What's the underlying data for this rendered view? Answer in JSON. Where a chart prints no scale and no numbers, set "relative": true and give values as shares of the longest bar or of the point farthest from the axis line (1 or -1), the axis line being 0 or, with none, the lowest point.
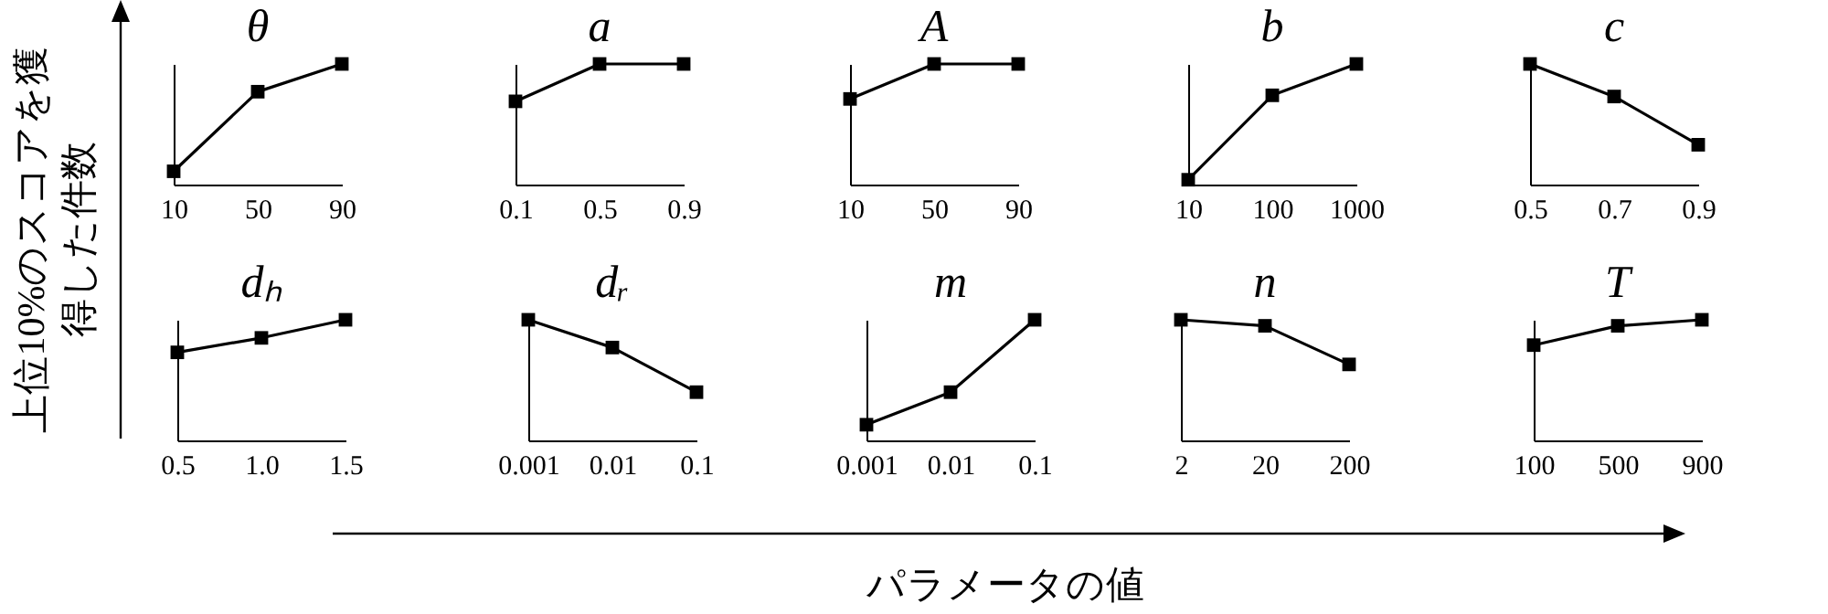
{
  "chart_data": [
    {
      "type": "line",
      "title": "θ",
      "ylabel": "上位10%のスコアを獲得した件数",
      "categories": [
        "10",
        "50",
        "90"
      ],
      "values": [
        0.11,
        0.77,
        1
      ],
      "relative": true,
      "color": "#000000",
      "marker": "square",
      "line_style": "solid",
      "tick_labels": "x"
    },
    {
      "type": "line",
      "title": "a",
      "categories": [
        "0.1",
        "0.5",
        "0.9"
      ],
      "values": [
        0.69,
        1,
        1
      ],
      "relative": true,
      "color": "#000000",
      "marker": "square",
      "line_style": "solid",
      "tick_labels": "x"
    },
    {
      "type": "line",
      "title": "A",
      "categories": [
        "10",
        "50",
        "90"
      ],
      "values": [
        0.71,
        1,
        1
      ],
      "relative": true,
      "color": "#000000",
      "marker": "square",
      "line_style": "solid",
      "tick_labels": "x"
    },
    {
      "type": "line",
      "title": "b",
      "categories": [
        "10",
        "100",
        "1000"
      ],
      "values": [
        0.04,
        0.74,
        1
      ],
      "relative": true,
      "color": "#000000",
      "marker": "square",
      "line_style": "solid",
      "tick_labels": "x"
    },
    {
      "type": "line",
      "title": "c",
      "categories": [
        "0.5",
        "0.7",
        "0.9"
      ],
      "values": [
        1,
        0.73,
        0.33
      ],
      "relative": true,
      "color": "#000000",
      "marker": "square",
      "line_style": "solid",
      "tick_labels": "x"
    },
    {
      "type": "line",
      "title": "dₕ",
      "categories": [
        "0.5",
        "1.0",
        "1.5"
      ],
      "values": [
        0.73,
        0.85,
        1
      ],
      "relative": true,
      "color": "#000000",
      "marker": "square",
      "line_style": "solid",
      "tick_labels": "x"
    },
    {
      "type": "line",
      "title": "dᵣ",
      "categories": [
        "0.001",
        "0.01",
        "0.1"
      ],
      "values": [
        1,
        0.77,
        0.4
      ],
      "relative": true,
      "color": "#000000",
      "marker": "square",
      "line_style": "solid",
      "tick_labels": "x"
    },
    {
      "type": "line",
      "title": "m",
      "xlabel": "パラメータの値",
      "categories": [
        "0.001",
        "0.01",
        "0.1"
      ],
      "values": [
        0.13,
        0.4,
        1
      ],
      "relative": true,
      "color": "#000000",
      "marker": "square",
      "line_style": "solid",
      "tick_labels": "x"
    },
    {
      "type": "line",
      "title": "n",
      "categories": [
        "2",
        "20",
        "200"
      ],
      "values": [
        1,
        0.95,
        0.63
      ],
      "relative": true,
      "color": "#000000",
      "marker": "square",
      "line_style": "solid",
      "tick_labels": "x"
    },
    {
      "type": "line",
      "title": "T",
      "categories": [
        "100",
        "500",
        "900"
      ],
      "values": [
        0.79,
        0.95,
        1
      ],
      "relative": true,
      "color": "#000000",
      "marker": "square",
      "line_style": "solid",
      "tick_labels": "x"
    }
  ]
}
